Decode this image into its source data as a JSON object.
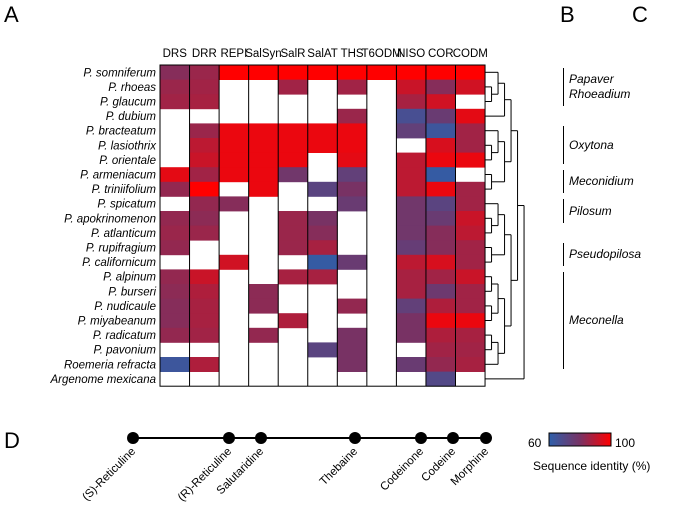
{
  "panels": {
    "a": "A",
    "b": "B",
    "c": "C",
    "d": "D"
  },
  "chart_data": {
    "type": "heatmap",
    "columns": [
      "DRS",
      "DRR",
      "REPI",
      "SalSyn",
      "SalR",
      "SalAT",
      "THS",
      "T6ODM",
      "NISO",
      "COR",
      "CODM"
    ],
    "rows": [
      "P. somniferum",
      "P. rhoeas",
      "P. glaucum",
      "P. dubium",
      "P. bracteatum",
      "P. lasiothrix",
      "P. orientale",
      "P. armeniacum",
      "P. triniifolium",
      "P. spicatum",
      "P. apokrinomenon",
      "P. atlanticum",
      "P. rupifragium",
      "P. californicum",
      "P. alpinum",
      "P.  burseri",
      "P. nudicaule",
      "P. miyabeanum",
      "P. radicatum",
      "P. pavonium",
      "Roemeria refracta",
      "Argenome mexicana"
    ],
    "values": [
      [
        82,
        85,
        100,
        100,
        100,
        100,
        100,
        100,
        100,
        100,
        100
      ],
      [
        85,
        86,
        null,
        null,
        86,
        null,
        86,
        null,
        92,
        82,
        93
      ],
      [
        86,
        87,
        null,
        null,
        null,
        null,
        null,
        null,
        87,
        93,
        null
      ],
      [
        null,
        null,
        null,
        null,
        null,
        null,
        85,
        null,
        67,
        76,
        96
      ],
      [
        null,
        85,
        97,
        97,
        97,
        97,
        97,
        null,
        74,
        64,
        86
      ],
      [
        null,
        90,
        97,
        97,
        97,
        97,
        97,
        null,
        null,
        94,
        86
      ],
      [
        null,
        92,
        97,
        97,
        97,
        null,
        96,
        null,
        90,
        97,
        97
      ],
      [
        96,
        86,
        97,
        97,
        78,
        null,
        74,
        null,
        90,
        62,
        null
      ],
      [
        84,
        100,
        null,
        97,
        null,
        72,
        80,
        null,
        90,
        97,
        86
      ],
      [
        null,
        84,
        82,
        null,
        null,
        null,
        76,
        null,
        78,
        72,
        86
      ],
      [
        84,
        83,
        null,
        null,
        85,
        80,
        null,
        null,
        78,
        76,
        92
      ],
      [
        85,
        85,
        null,
        null,
        85,
        82,
        null,
        null,
        78,
        82,
        90
      ],
      [
        84,
        null,
        null,
        null,
        85,
        87,
        null,
        null,
        75,
        82,
        86
      ],
      [
        null,
        null,
        93,
        null,
        null,
        62,
        76,
        null,
        90,
        94,
        86
      ],
      [
        84,
        92,
        null,
        null,
        87,
        87,
        null,
        null,
        87,
        86,
        92
      ],
      [
        83,
        88,
        null,
        83,
        null,
        null,
        null,
        null,
        87,
        77,
        86
      ],
      [
        82,
        87,
        null,
        83,
        null,
        null,
        84,
        null,
        74,
        88,
        86
      ],
      [
        82,
        87,
        null,
        null,
        88,
        null,
        null,
        null,
        80,
        97,
        97
      ],
      [
        84,
        86,
        null,
        84,
        null,
        null,
        80,
        null,
        80,
        88,
        87
      ],
      [
        null,
        null,
        null,
        null,
        null,
        72,
        80,
        null,
        null,
        86,
        86
      ],
      [
        64,
        88,
        null,
        null,
        null,
        null,
        80,
        null,
        76,
        84,
        87
      ],
      [
        null,
        null,
        null,
        null,
        null,
        null,
        null,
        null,
        null,
        70,
        null
      ]
    ],
    "colorbar": {
      "min": 60,
      "max": 100,
      "min_label": "60",
      "max_label": "100",
      "label": "Sequence identity (%)",
      "low_color": "#2e5faa",
      "mid_color": "#783264",
      "high_color": "#ff0000"
    },
    "dendrogram": [
      [
        [
          [
            [
              0,
              [
                1,
                2
              ]
            ],
            3
          ],
          [
            [
              4,
              [
                5,
                6
              ]
            ],
            [
              7,
              8
            ]
          ]
        ],
        [
          [
            [
              9,
              [
                10,
                11
              ]
            ],
            [
              12,
              13
            ]
          ],
          [
            [
              [
                14,
                15
              ],
              [
                16,
                17
              ]
            ],
            [
              [
                18,
                19
              ],
              20
            ]
          ]
        ]
      ],
      21
    ],
    "clades": [
      {
        "label": "Papaver",
        "label2": "Rhoeadium",
        "from": 0,
        "to": 2
      },
      {
        "label": "Oxytona",
        "from": 4,
        "to": 6
      },
      {
        "label": "Meconidium",
        "from": 7,
        "to": 8
      },
      {
        "label": "Pilosum",
        "from": 9,
        "to": 10
      },
      {
        "label": "Pseudopilosa",
        "from": 12,
        "to": 13
      },
      {
        "label": "Meconella",
        "from": 14,
        "to": 20
      }
    ],
    "pathway": [
      "(S)-Reticuline",
      "(R)-Reticuline",
      "Salutaridine",
      "Thebaine",
      "Codeinone",
      "Codeine",
      "Morphine"
    ]
  }
}
